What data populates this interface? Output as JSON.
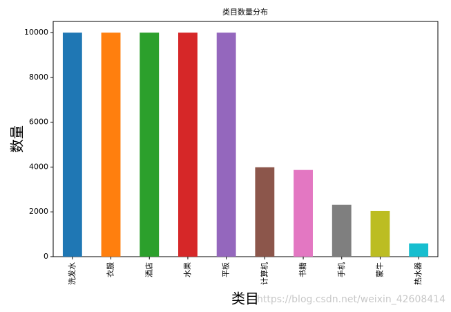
{
  "chart_data": {
    "type": "bar",
    "title": "类目数量分布",
    "x_label": "类目",
    "y_label": "数量",
    "categories": [
      "洗发水",
      "衣服",
      "酒店",
      "水果",
      "平板",
      "计算机",
      "书籍",
      "手机",
      "蒙牛",
      "热水器"
    ],
    "values": [
      10000,
      10000,
      10000,
      10000,
      10000,
      3990,
      3870,
      2320,
      2040,
      590
    ],
    "colors": [
      "#1f77b4",
      "#ff7f0e",
      "#2ca02c",
      "#d62728",
      "#9467bd",
      "#8c564b",
      "#e377c2",
      "#7f7f7f",
      "#bcbd22",
      "#17becf"
    ],
    "ylim": [
      0,
      10500
    ],
    "yticks": [
      0,
      2000,
      4000,
      6000,
      8000,
      10000
    ],
    "grid": false,
    "watermark": "https://blog.csdn.net/weixin_42608414"
  }
}
